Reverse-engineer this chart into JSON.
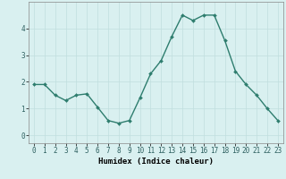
{
  "x": [
    0,
    1,
    2,
    3,
    4,
    5,
    6,
    7,
    8,
    9,
    10,
    11,
    12,
    13,
    14,
    15,
    16,
    17,
    18,
    19,
    20,
    21,
    22,
    23
  ],
  "y": [
    1.9,
    1.9,
    1.5,
    1.3,
    1.5,
    1.55,
    1.05,
    0.55,
    0.45,
    0.55,
    1.4,
    2.3,
    2.8,
    3.7,
    4.5,
    4.3,
    4.5,
    4.5,
    3.55,
    2.4,
    1.9,
    1.5,
    1.0,
    0.55
  ],
  "line_color": "#2e7d6e",
  "marker": "D",
  "marker_size": 2.0,
  "line_width": 1.0,
  "bg_color": "#d9f0f0",
  "grid_color": "#c0dede",
  "xlabel": "Humidex (Indice chaleur)",
  "xlabel_fontsize": 6.5,
  "tick_fontsize": 5.5,
  "ylim": [
    -0.3,
    5.0
  ],
  "xlim": [
    -0.5,
    23.5
  ],
  "yticks": [
    0,
    1,
    2,
    3,
    4
  ],
  "xticks": [
    0,
    1,
    2,
    3,
    4,
    5,
    6,
    7,
    8,
    9,
    10,
    11,
    12,
    13,
    14,
    15,
    16,
    17,
    18,
    19,
    20,
    21,
    22,
    23
  ]
}
